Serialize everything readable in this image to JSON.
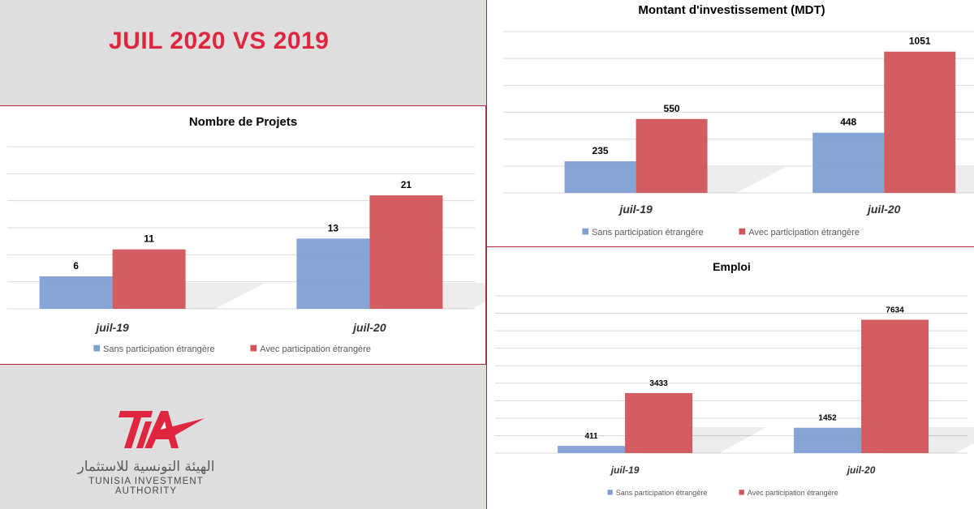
{
  "header": {
    "title": "JUIL 2020 VS 2019"
  },
  "logo": {
    "arabic": "الهيئة التونسية للاستثمار",
    "english": "TUNISIA INVESTMENT AUTHORITY",
    "mark": "TIA"
  },
  "colors": {
    "blue": "#7f9fd3",
    "red": "#d0555a",
    "title_red": "#e0263f",
    "border": "#b02a35"
  },
  "chart_data": [
    {
      "id": "projets",
      "type": "bar",
      "title": "Nombre de Projets",
      "categories": [
        "juil-19",
        "juil-20"
      ],
      "series": [
        {
          "name": "Sans participation étrangère",
          "values": [
            6,
            13
          ],
          "color": "#7f9fd3"
        },
        {
          "name": "Avec participation étrangère",
          "values": [
            11,
            21
          ],
          "color": "#d0555a"
        }
      ],
      "ylim": [
        0,
        30
      ],
      "grid": true,
      "legend": "bottom"
    },
    {
      "id": "investissement",
      "type": "bar",
      "title": "Montant d'investissement (MDT)",
      "categories": [
        "juil-19",
        "juil-20"
      ],
      "series": [
        {
          "name": "Sans participation étrangère",
          "values": [
            235,
            448
          ],
          "color": "#7f9fd3"
        },
        {
          "name": "Avec participation étrangère",
          "values": [
            550,
            1051
          ],
          "color": "#d0555a"
        }
      ],
      "ylim": [
        0,
        1200
      ],
      "grid": true,
      "legend": "bottom"
    },
    {
      "id": "emploi",
      "type": "bar",
      "title": "Emploi",
      "categories": [
        "juil-19",
        "juil-20"
      ],
      "series": [
        {
          "name": "Sans participation étrangère",
          "values": [
            411,
            1452
          ],
          "color": "#7f9fd3"
        },
        {
          "name": "Avec participation étrangère",
          "values": [
            3433,
            7634
          ],
          "color": "#d0555a"
        }
      ],
      "ylim": [
        0,
        9000
      ],
      "grid": true,
      "legend": "bottom"
    }
  ]
}
